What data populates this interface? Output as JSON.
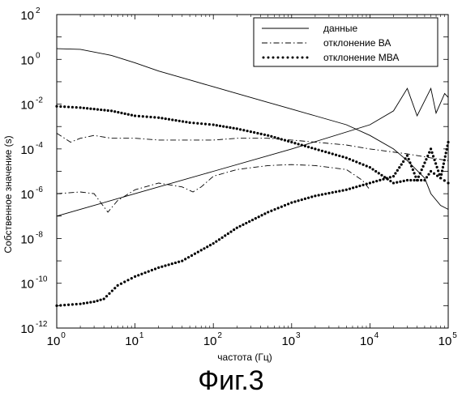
{
  "chart_data": {
    "type": "line",
    "xscale": "log",
    "yscale": "log",
    "xlim": [
      1,
      100000
    ],
    "ylim": [
      1e-12,
      100
    ],
    "xlabel": "частота (Гц)",
    "ylabel": "Собственное значение (s)",
    "x_ticks": [
      {
        "base": "10",
        "exp": "0"
      },
      {
        "base": "10",
        "exp": "1"
      },
      {
        "base": "10",
        "exp": "2"
      },
      {
        "base": "10",
        "exp": "3"
      },
      {
        "base": "10",
        "exp": "4"
      },
      {
        "base": "10",
        "exp": "5"
      }
    ],
    "y_ticks": [
      {
        "base": "10",
        "exp": "2"
      },
      {
        "base": "10",
        "exp": "0"
      },
      {
        "base": "10",
        "exp": "-2"
      },
      {
        "base": "10",
        "exp": "-4"
      },
      {
        "base": "10",
        "exp": "-6"
      },
      {
        "base": "10",
        "exp": "-8"
      },
      {
        "base": "10",
        "exp": "-10"
      },
      {
        "base": "10",
        "exp": "-12"
      }
    ],
    "legend_position": "top-right",
    "series": [
      {
        "name": "данные",
        "style": "solid",
        "x": [
          1,
          2,
          5,
          10,
          20,
          50,
          100,
          200,
          500,
          1000,
          2000,
          5000,
          10000,
          20000,
          30000,
          50000,
          60000,
          80000,
          100000
        ],
        "y": [
          3,
          2.8,
          1.5,
          0.7,
          0.3,
          0.12,
          0.06,
          0.03,
          0.012,
          0.006,
          0.003,
          0.0012,
          0.0004,
          0.0001,
          3e-05,
          5e-06,
          1e-06,
          3e-07,
          2e-07
        ]
      },
      {
        "name": "данные",
        "style": "solid",
        "x": [
          1,
          10,
          100,
          1000,
          10000,
          20000,
          30000,
          40000,
          60000,
          70000,
          90000,
          100000
        ],
        "y": [
          1e-07,
          1e-06,
          1e-05,
          0.0001,
          0.0012,
          0.005,
          0.05,
          0.003,
          0.05,
          0.004,
          0.03,
          0.02
        ]
      },
      {
        "name": "отклонение ВА",
        "style": "dashdot",
        "x": [
          1,
          1.5,
          2,
          3,
          5,
          10,
          20,
          50,
          100,
          200,
          500,
          1000,
          2000,
          5000,
          10000,
          30000,
          60000,
          100000
        ],
        "y": [
          0.0005,
          0.0002,
          0.0003,
          0.0004,
          0.0003,
          0.0003,
          0.00025,
          0.00025,
          0.00025,
          0.0003,
          0.0003,
          0.00025,
          0.0002,
          0.00015,
          0.0001,
          6e-05,
          4e-05,
          3e-05
        ]
      },
      {
        "name": "отклонение ВА",
        "style": "dashdot",
        "x": [
          1,
          2,
          3,
          4.5,
          6,
          10,
          20,
          40,
          55,
          70,
          100,
          200,
          500,
          1000,
          2000,
          5000,
          8000,
          10000
        ],
        "y": [
          1e-06,
          1.2e-06,
          1e-06,
          1.5e-07,
          5e-07,
          1.5e-06,
          3e-06,
          2e-06,
          1.2e-06,
          2e-06,
          6e-06,
          1.2e-05,
          1.8e-05,
          2e-05,
          1.8e-05,
          1.2e-05,
          4e-06,
          1.5e-06
        ]
      },
      {
        "name": "отклонение МВА",
        "style": "dotted",
        "x": [
          1,
          2,
          5,
          10,
          20,
          50,
          100,
          200,
          500,
          1000,
          2000,
          5000,
          10000,
          20000,
          30000,
          50000,
          60000,
          80000,
          100000
        ],
        "y": [
          0.008,
          0.007,
          0.005,
          0.003,
          0.0025,
          0.0015,
          0.0012,
          0.0008,
          0.0004,
          0.0002,
          0.0001,
          4e-05,
          1.5e-05,
          3e-06,
          4e-06,
          4e-06,
          1e-05,
          5e-06,
          3e-06
        ]
      },
      {
        "name": "отклонение МВА",
        "style": "dotted",
        "x": [
          1,
          2,
          3,
          4,
          6,
          10,
          20,
          40,
          70,
          100,
          200,
          500,
          1000,
          2000,
          5000,
          10000,
          20000,
          30000,
          40000,
          60000,
          80000,
          100000
        ],
        "y": [
          1e-11,
          1.2e-11,
          1.5e-11,
          2e-11,
          8e-11,
          2e-10,
          5e-10,
          1e-09,
          3e-09,
          6e-09,
          3e-08,
          1.5e-07,
          4e-07,
          8e-07,
          1.5e-06,
          3e-06,
          6e-06,
          5e-05,
          4e-06,
          0.0001,
          5e-06,
          0.0002
        ]
      }
    ],
    "legend": [
      {
        "label": "данные",
        "style": "solid"
      },
      {
        "label": "отклонение ВА",
        "style": "dashdot"
      },
      {
        "label": "отклонение МВА",
        "style": "dotted"
      }
    ]
  },
  "caption": "Фиг.3"
}
